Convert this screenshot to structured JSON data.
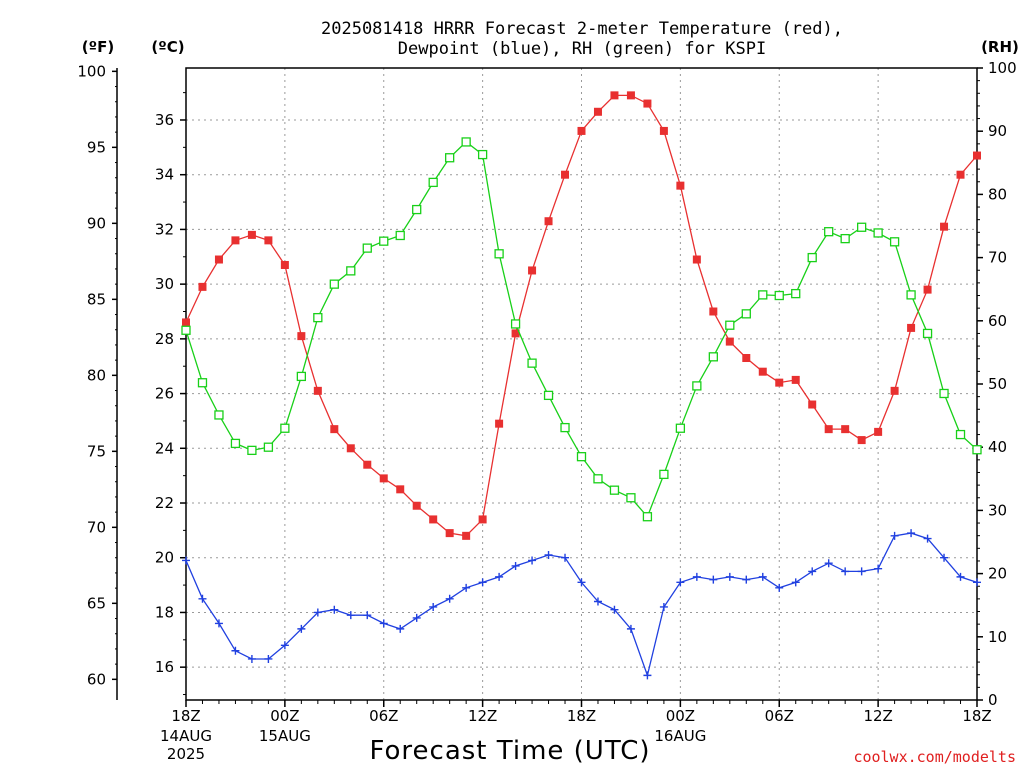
{
  "chart_data": {
    "type": "line",
    "title_line1": "2025081418 HRRR Forecast 2-meter Temperature (red),",
    "title_line2": "Dewpoint (blue), RH (green) for KSPI",
    "xlabel": "Forecast Time (UTC)",
    "credit": "coolwx.com/modelts",
    "left_unit_f": "(ºF)",
    "left_unit_c": "(ºC)",
    "right_unit": "(RH)",
    "grid": true,
    "colors": {
      "temperature": "#e83030",
      "dewpoint": "#2040e0",
      "rh": "#18d018"
    },
    "x_range_hours": [
      0,
      48
    ],
    "x_ticks": [
      {
        "hour": 0,
        "label": "18Z",
        "date": "14AUG",
        "year": "2025"
      },
      {
        "hour": 6,
        "label": "00Z",
        "date": "15AUG",
        "year": ""
      },
      {
        "hour": 12,
        "label": "06Z",
        "date": "",
        "year": ""
      },
      {
        "hour": 18,
        "label": "12Z",
        "date": "",
        "year": ""
      },
      {
        "hour": 24,
        "label": "18Z",
        "date": "",
        "year": ""
      },
      {
        "hour": 30,
        "label": "00Z",
        "date": "16AUG",
        "year": ""
      },
      {
        "hour": 36,
        "label": "06Z",
        "date": "",
        "year": ""
      },
      {
        "hour": 42,
        "label": "12Z",
        "date": "",
        "year": ""
      },
      {
        "hour": 48,
        "label": "18Z",
        "date": "",
        "year": ""
      }
    ],
    "y_celsius_range": [
      14.8,
      37.9
    ],
    "y_celsius_ticks": [
      16,
      18,
      20,
      22,
      24,
      26,
      28,
      30,
      32,
      34,
      36
    ],
    "y_fahrenheit_ticks": [
      60,
      65,
      70,
      75,
      80,
      85,
      90,
      95,
      100
    ],
    "y_rh_range": [
      0,
      100
    ],
    "y_rh_ticks": [
      0,
      10,
      20,
      30,
      40,
      50,
      60,
      70,
      80,
      90,
      100
    ],
    "hours": [
      0,
      1,
      2,
      3,
      4,
      5,
      6,
      7,
      8,
      9,
      10,
      11,
      12,
      13,
      14,
      15,
      16,
      17,
      18,
      19,
      20,
      21,
      22,
      23,
      24,
      25,
      26,
      27,
      28,
      29,
      30,
      31,
      32,
      33,
      34,
      35,
      36,
      37,
      38,
      39,
      40,
      41,
      42,
      43,
      44,
      45,
      46,
      47,
      48
    ],
    "series": [
      {
        "name": "Temperature",
        "key": "temperature",
        "unit": "C",
        "marker": "filled-square",
        "values": [
          28.6,
          29.9,
          30.9,
          31.6,
          31.8,
          31.6,
          30.7,
          28.1,
          26.1,
          24.7,
          24.0,
          23.4,
          22.9,
          22.5,
          21.9,
          21.4,
          20.9,
          20.8,
          21.4,
          24.9,
          28.2,
          30.5,
          32.3,
          34.0,
          35.6,
          36.3,
          36.9,
          36.9,
          36.6,
          35.6,
          33.6,
          30.9,
          29.0,
          27.9,
          27.3,
          26.8,
          26.4,
          26.5,
          25.6,
          24.7,
          24.7,
          24.3,
          24.6,
          26.1,
          28.4,
          29.8,
          32.1,
          34.0,
          34.7
        ]
      },
      {
        "name": "Dewpoint",
        "key": "dewpoint",
        "unit": "C",
        "marker": "plus",
        "values": [
          19.9,
          18.5,
          17.6,
          16.6,
          16.3,
          16.3,
          16.8,
          17.4,
          18.0,
          18.1,
          17.9,
          17.9,
          17.6,
          17.4,
          17.8,
          18.2,
          18.5,
          18.9,
          19.1,
          19.3,
          19.7,
          19.9,
          20.1,
          20.0,
          19.1,
          18.4,
          18.1,
          17.4,
          15.7,
          18.2,
          19.1,
          19.3,
          19.2,
          19.3,
          19.2,
          19.3,
          18.9,
          19.1,
          19.5,
          19.8,
          19.5,
          19.5,
          19.6,
          20.8,
          20.9,
          20.7,
          20.0,
          19.3,
          19.1
        ]
      },
      {
        "name": "RH",
        "key": "rh",
        "unit": "%",
        "marker": "open-square",
        "values": [
          58.5,
          50.2,
          45.1,
          40.6,
          39.5,
          40.0,
          43.0,
          51.2,
          60.5,
          65.8,
          67.9,
          71.5,
          72.6,
          73.5,
          77.6,
          81.9,
          85.8,
          88.3,
          86.3,
          70.6,
          59.5,
          53.3,
          48.2,
          43.1,
          38.5,
          35.0,
          33.2,
          32.0,
          29.0,
          35.7,
          43.0,
          49.7,
          54.3,
          59.3,
          61.1,
          64.1,
          64.0,
          64.3,
          70.0,
          74.1,
          73.0,
          74.8,
          73.9,
          72.5,
          64.1,
          58.0,
          48.5,
          42.0,
          39.6
        ]
      }
    ]
  }
}
